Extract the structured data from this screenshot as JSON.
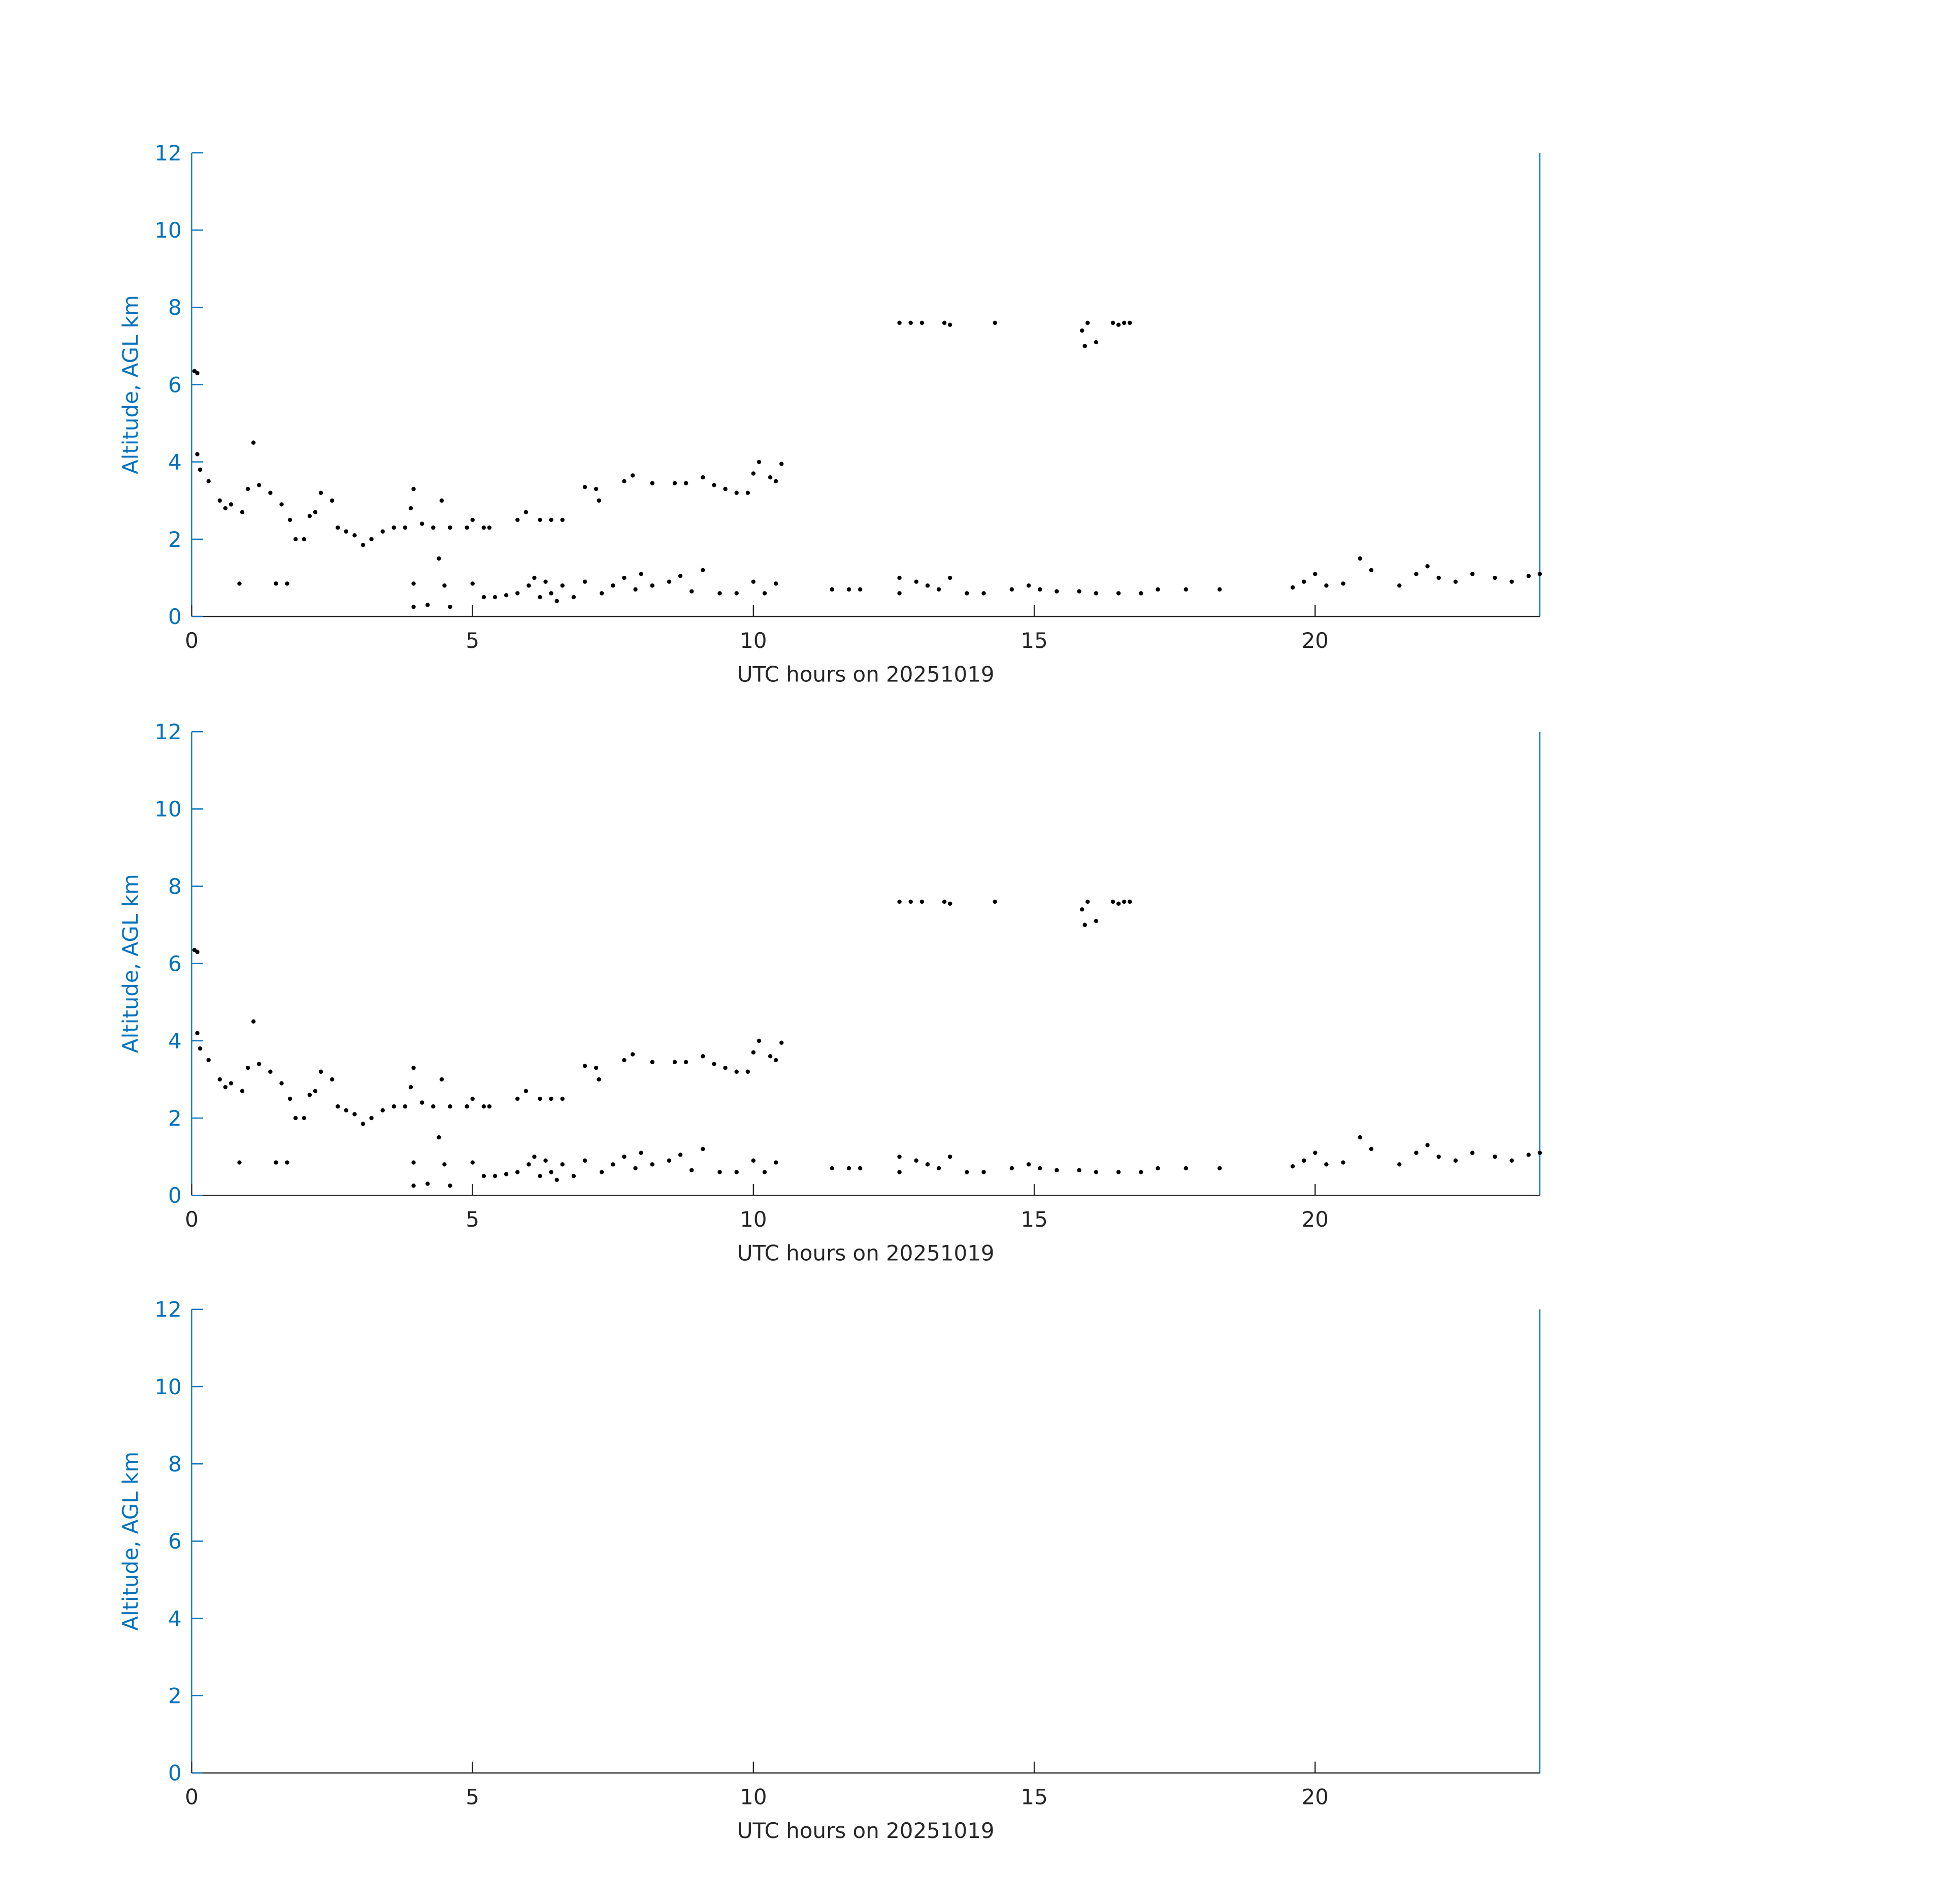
{
  "chart_data": [
    {
      "type": "scatter",
      "xlabel": "UTC hours on 20251019",
      "ylabel": "Altitude, AGL km",
      "xlim": [
        0,
        24
      ],
      "ylim": [
        0,
        12
      ],
      "xticks": [
        0,
        5,
        10,
        15,
        20
      ],
      "yticks": [
        0,
        2,
        4,
        6,
        8,
        10,
        12
      ],
      "color": "#000000",
      "axis_color": "#0072bd",
      "x": [
        0.05,
        0.1,
        12.6,
        12.8,
        13.0,
        13.4,
        13.5,
        14.3,
        15.85,
        15.9,
        15.95,
        16.1,
        16.4,
        16.5,
        16.6,
        16.7,
        0.1,
        0.15,
        0.3,
        0.5,
        0.6,
        0.7,
        0.9,
        1.0,
        1.1,
        1.2,
        1.4,
        1.6,
        1.75,
        1.85,
        2.0,
        2.1,
        2.2,
        2.3,
        2.5,
        2.6,
        2.75,
        2.9,
        3.05,
        3.2,
        3.4,
        3.6,
        3.8,
        3.9,
        3.95,
        4.1,
        4.3,
        4.4,
        4.45,
        4.6,
        4.9,
        5.0,
        5.2,
        5.3,
        5.8,
        5.95,
        6.2,
        6.4,
        6.6,
        7.0,
        7.2,
        7.25,
        7.7,
        7.85,
        8.2,
        8.6,
        8.8,
        9.1,
        9.3,
        9.5,
        9.7,
        9.9,
        10.0,
        10.1,
        10.3,
        10.4,
        10.5,
        0.85,
        1.5,
        1.7,
        3.95,
        3.95,
        4.2,
        4.5,
        4.6,
        5.0,
        5.2,
        5.4,
        5.6,
        5.8,
        6.0,
        6.1,
        6.2,
        6.3,
        6.4,
        6.5,
        6.6,
        6.8,
        7.0,
        7.3,
        7.5,
        7.7,
        7.9,
        8.0,
        8.2,
        8.5,
        8.7,
        8.9,
        9.1,
        9.4,
        9.7,
        10.0,
        10.2,
        10.4,
        11.4,
        11.7,
        11.9,
        12.6,
        12.6,
        12.9,
        13.1,
        13.3,
        13.5,
        13.8,
        14.1,
        14.6,
        14.9,
        15.1,
        15.4,
        15.8,
        16.1,
        16.5,
        16.9,
        17.2,
        17.7,
        18.3,
        19.6,
        19.8,
        20.0,
        20.2,
        20.5,
        20.8,
        21.0,
        21.5,
        21.8,
        22.0,
        22.2,
        22.5,
        22.8,
        23.2,
        23.5,
        23.8,
        24.0
      ],
      "values": [
        6.35,
        6.3,
        7.6,
        7.6,
        7.6,
        7.6,
        7.55,
        7.6,
        7.4,
        7.0,
        7.6,
        7.1,
        7.6,
        7.55,
        7.6,
        7.6,
        4.2,
        3.8,
        3.5,
        3.0,
        2.8,
        2.9,
        2.7,
        3.3,
        4.5,
        3.4,
        3.2,
        2.9,
        2.5,
        2.0,
        2.0,
        2.6,
        2.7,
        3.2,
        3.0,
        2.3,
        2.2,
        2.1,
        1.85,
        2.0,
        2.2,
        2.3,
        2.3,
        2.8,
        3.3,
        2.4,
        2.3,
        1.5,
        3.0,
        2.3,
        2.3,
        2.5,
        2.3,
        2.3,
        2.5,
        2.7,
        2.5,
        2.5,
        2.5,
        3.35,
        3.3,
        3.0,
        3.5,
        3.65,
        3.45,
        3.45,
        3.45,
        3.6,
        3.4,
        3.3,
        3.2,
        3.2,
        3.7,
        4.0,
        3.6,
        3.5,
        3.95,
        0.85,
        0.85,
        0.85,
        0.25,
        0.85,
        0.3,
        0.8,
        0.25,
        0.85,
        0.5,
        0.5,
        0.55,
        0.6,
        0.8,
        1.0,
        0.5,
        0.9,
        0.6,
        0.4,
        0.8,
        0.5,
        0.9,
        0.6,
        0.8,
        1.0,
        0.7,
        1.1,
        0.8,
        0.9,
        1.05,
        0.65,
        1.2,
        0.6,
        0.6,
        0.9,
        0.6,
        0.85,
        0.7,
        0.7,
        0.7,
        0.6,
        1.0,
        0.9,
        0.8,
        0.7,
        1.0,
        0.6,
        0.6,
        0.7,
        0.8,
        0.7,
        0.65,
        0.65,
        0.6,
        0.6,
        0.6,
        0.7,
        0.7,
        0.7,
        0.75,
        0.9,
        1.1,
        0.8,
        0.85,
        1.5,
        1.2,
        0.8,
        1.1,
        1.3,
        1.0,
        0.9,
        1.1,
        1.0,
        0.9,
        1.05,
        1.1
      ]
    },
    {
      "type": "scatter",
      "xlabel": "UTC hours on 20251019",
      "ylabel": "Altitude, AGL km",
      "xlim": [
        0,
        24
      ],
      "ylim": [
        0,
        12
      ],
      "xticks": [
        0,
        5,
        10,
        15,
        20
      ],
      "yticks": [
        0,
        2,
        4,
        6,
        8,
        10,
        12
      ],
      "color": "#000000",
      "axis_color": "#0072bd",
      "x": [
        0.05,
        0.1,
        12.6,
        12.8,
        13.0,
        13.4,
        13.5,
        14.3,
        15.85,
        15.9,
        15.95,
        16.1,
        16.4,
        16.5,
        16.6,
        16.7,
        0.1,
        0.15,
        0.3,
        0.5,
        0.6,
        0.7,
        0.9,
        1.0,
        1.1,
        1.2,
        1.4,
        1.6,
        1.75,
        1.85,
        2.0,
        2.1,
        2.2,
        2.3,
        2.5,
        2.6,
        2.75,
        2.9,
        3.05,
        3.2,
        3.4,
        3.6,
        3.8,
        3.9,
        3.95,
        4.1,
        4.3,
        4.4,
        4.45,
        4.6,
        4.9,
        5.0,
        5.2,
        5.3,
        5.8,
        5.95,
        6.2,
        6.4,
        6.6,
        7.0,
        7.2,
        7.25,
        7.7,
        7.85,
        8.2,
        8.6,
        8.8,
        9.1,
        9.3,
        9.5,
        9.7,
        9.9,
        10.0,
        10.1,
        10.3,
        10.4,
        10.5,
        0.85,
        1.5,
        1.7,
        3.95,
        3.95,
        4.2,
        4.5,
        4.6,
        5.0,
        5.2,
        5.4,
        5.6,
        5.8,
        6.0,
        6.1,
        6.2,
        6.3,
        6.4,
        6.5,
        6.6,
        6.8,
        7.0,
        7.3,
        7.5,
        7.7,
        7.9,
        8.0,
        8.2,
        8.5,
        8.7,
        8.9,
        9.1,
        9.4,
        9.7,
        10.0,
        10.2,
        10.4,
        11.4,
        11.7,
        11.9,
        12.6,
        12.6,
        12.9,
        13.1,
        13.3,
        13.5,
        13.8,
        14.1,
        14.6,
        14.9,
        15.1,
        15.4,
        15.8,
        16.1,
        16.5,
        16.9,
        17.2,
        17.7,
        18.3,
        19.6,
        19.8,
        20.0,
        20.2,
        20.5,
        20.8,
        21.0,
        21.5,
        21.8,
        22.0,
        22.2,
        22.5,
        22.8,
        23.2,
        23.5,
        23.8,
        24.0
      ],
      "values": [
        6.35,
        6.3,
        7.6,
        7.6,
        7.6,
        7.6,
        7.55,
        7.6,
        7.4,
        7.0,
        7.6,
        7.1,
        7.6,
        7.55,
        7.6,
        7.6,
        4.2,
        3.8,
        3.5,
        3.0,
        2.8,
        2.9,
        2.7,
        3.3,
        4.5,
        3.4,
        3.2,
        2.9,
        2.5,
        2.0,
        2.0,
        2.6,
        2.7,
        3.2,
        3.0,
        2.3,
        2.2,
        2.1,
        1.85,
        2.0,
        2.2,
        2.3,
        2.3,
        2.8,
        3.3,
        2.4,
        2.3,
        1.5,
        3.0,
        2.3,
        2.3,
        2.5,
        2.3,
        2.3,
        2.5,
        2.7,
        2.5,
        2.5,
        2.5,
        3.35,
        3.3,
        3.0,
        3.5,
        3.65,
        3.45,
        3.45,
        3.45,
        3.6,
        3.4,
        3.3,
        3.2,
        3.2,
        3.7,
        4.0,
        3.6,
        3.5,
        3.95,
        0.85,
        0.85,
        0.85,
        0.25,
        0.85,
        0.3,
        0.8,
        0.25,
        0.85,
        0.5,
        0.5,
        0.55,
        0.6,
        0.8,
        1.0,
        0.5,
        0.9,
        0.6,
        0.4,
        0.8,
        0.5,
        0.9,
        0.6,
        0.8,
        1.0,
        0.7,
        1.1,
        0.8,
        0.9,
        1.05,
        0.65,
        1.2,
        0.6,
        0.6,
        0.9,
        0.6,
        0.85,
        0.7,
        0.7,
        0.7,
        0.6,
        1.0,
        0.9,
        0.8,
        0.7,
        1.0,
        0.6,
        0.6,
        0.7,
        0.8,
        0.7,
        0.65,
        0.65,
        0.6,
        0.6,
        0.6,
        0.7,
        0.7,
        0.7,
        0.75,
        0.9,
        1.1,
        0.8,
        0.85,
        1.5,
        1.2,
        0.8,
        1.1,
        1.3,
        1.0,
        0.9,
        1.1,
        1.0,
        0.9,
        1.05,
        1.1
      ]
    },
    {
      "type": "scatter",
      "xlabel": "UTC hours on 20251019",
      "ylabel": "Altitude, AGL km",
      "xlim": [
        0,
        24
      ],
      "ylim": [
        0,
        12
      ],
      "xticks": [
        0,
        5,
        10,
        15,
        20
      ],
      "yticks": [
        0,
        2,
        4,
        6,
        8,
        10,
        12
      ],
      "color": "#000000",
      "axis_color": "#0072bd",
      "x": [],
      "values": []
    }
  ]
}
